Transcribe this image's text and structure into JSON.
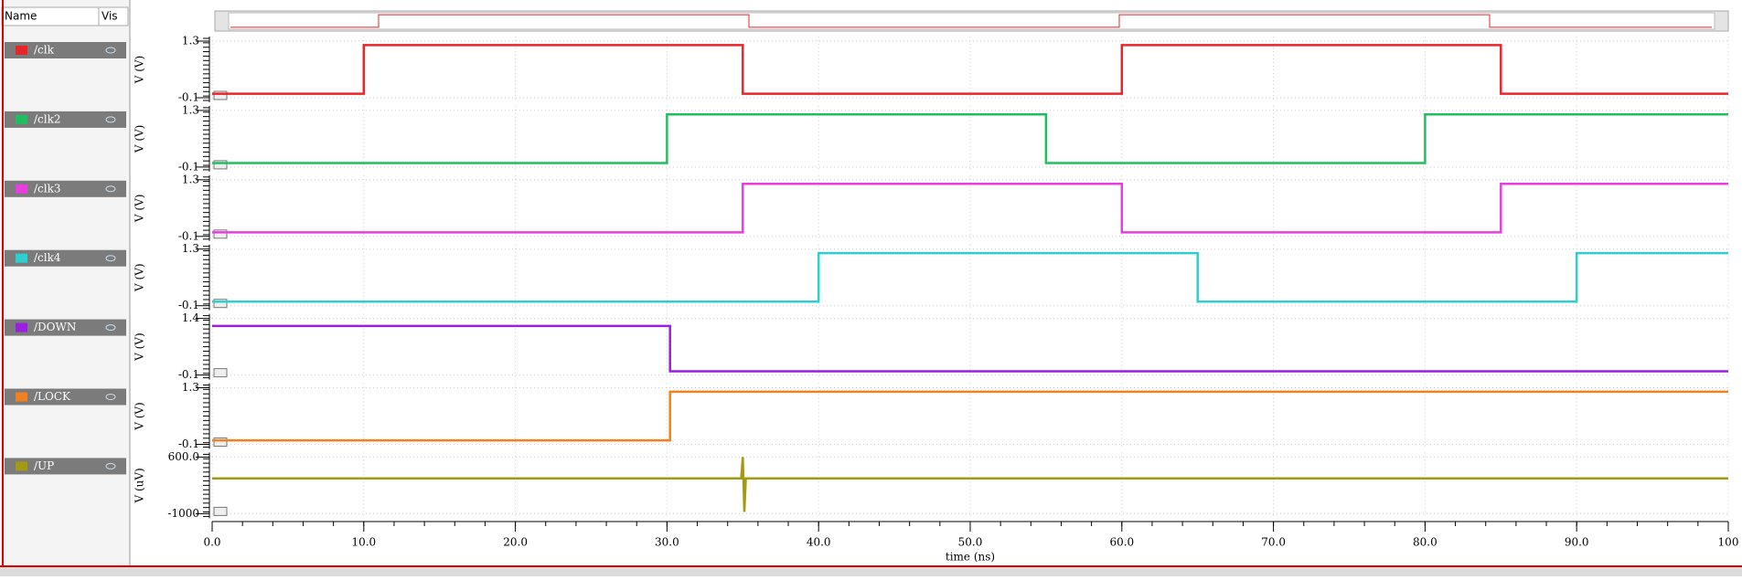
{
  "signal_list": {
    "headers": [
      "Name",
      "Vis"
    ]
  },
  "chart_data": [
    {
      "type": "line",
      "ylabel": "V (V)",
      "ylim": [
        -0.1,
        1.3
      ],
      "yticks": [
        1.3,
        -0.1
      ],
      "xlim": [
        0,
        100
      ],
      "grid": true,
      "x": [
        0,
        10,
        10,
        35,
        35,
        60,
        60,
        85,
        85,
        100
      ],
      "series": [
        {
          "name": "/clk",
          "color": "#e8262a",
          "values": [
            0,
            0,
            1.2,
            1.2,
            0,
            0,
            1.2,
            1.2,
            0,
            0
          ]
        }
      ]
    },
    {
      "type": "line",
      "ylabel": "V (V)",
      "ylim": [
        -0.1,
        1.3
      ],
      "yticks": [
        1.3,
        -0.1
      ],
      "xlim": [
        0,
        100
      ],
      "grid": true,
      "x": [
        0,
        30,
        30,
        55,
        55,
        80,
        80,
        100
      ],
      "series": [
        {
          "name": "/clk2",
          "color": "#1fbf5f",
          "values": [
            0,
            0,
            1.2,
            1.2,
            0,
            0,
            1.2,
            1.2
          ]
        }
      ]
    },
    {
      "type": "line",
      "ylabel": "V (V)",
      "ylim": [
        -0.1,
        1.3
      ],
      "yticks": [
        1.3,
        -0.1
      ],
      "xlim": [
        0,
        100
      ],
      "grid": true,
      "x": [
        0,
        35,
        35,
        60,
        60,
        85,
        85,
        100
      ],
      "series": [
        {
          "name": "/clk3",
          "color": "#e83ee0",
          "values": [
            0,
            0,
            1.2,
            1.2,
            0,
            0,
            1.2,
            1.2
          ]
        }
      ]
    },
    {
      "type": "line",
      "ylabel": "V (V)",
      "ylim": [
        -0.1,
        1.3
      ],
      "yticks": [
        1.3,
        -0.1
      ],
      "xlim": [
        0,
        100
      ],
      "grid": true,
      "x": [
        0,
        40,
        40,
        65,
        65,
        90,
        90,
        100
      ],
      "series": [
        {
          "name": "/clk4",
          "color": "#2ecfcf",
          "values": [
            0,
            0,
            1.2,
            1.2,
            0,
            0,
            1.2,
            1.2
          ]
        }
      ]
    },
    {
      "type": "line",
      "ylabel": "V (V)",
      "ylim": [
        -0.1,
        1.4
      ],
      "yticks": [
        1.4,
        -0.1
      ],
      "xlim": [
        0,
        100
      ],
      "grid": true,
      "x": [
        0,
        30.2,
        30.2,
        100
      ],
      "series": [
        {
          "name": "/DOWN",
          "color": "#9a1fe0",
          "values": [
            1.2,
            1.2,
            0,
            0
          ]
        }
      ]
    },
    {
      "type": "line",
      "ylabel": "V (V)",
      "ylim": [
        -0.1,
        1.3
      ],
      "yticks": [
        1.3,
        -0.1
      ],
      "xlim": [
        0,
        100
      ],
      "grid": true,
      "x": [
        0,
        30.2,
        30.2,
        100
      ],
      "series": [
        {
          "name": "/LOCK",
          "color": "#f08020",
          "values": [
            0,
            0,
            1.2,
            1.2
          ]
        }
      ]
    },
    {
      "type": "line",
      "ylabel": "V (uV)",
      "ylim": [
        -1000,
        600
      ],
      "yticks": [
        {
          "value": 600,
          "label": "600.0"
        },
        -1000
      ],
      "xlim": [
        0,
        100
      ],
      "grid": true,
      "x": [
        0,
        34.9,
        35,
        35.1,
        35.2,
        100
      ],
      "series": [
        {
          "name": "/UP",
          "color": "#a39a12",
          "values": [
            0,
            0,
            600,
            -950,
            0,
            0
          ]
        }
      ],
      "xlabel": "time (ns)",
      "xticks": [
        {
          "value": 0,
          "label": "0.0"
        },
        {
          "value": 10,
          "label": "10.0"
        },
        {
          "value": 20,
          "label": "20.0"
        },
        {
          "value": 30,
          "label": "30.0"
        },
        {
          "value": 40,
          "label": "40.0"
        },
        {
          "value": 50,
          "label": "50.0"
        },
        {
          "value": 60,
          "label": "60.0"
        },
        {
          "value": 70,
          "label": "70.0"
        },
        {
          "value": 80,
          "label": "80.0"
        },
        {
          "value": 90,
          "label": "90.0"
        },
        100
      ]
    }
  ]
}
